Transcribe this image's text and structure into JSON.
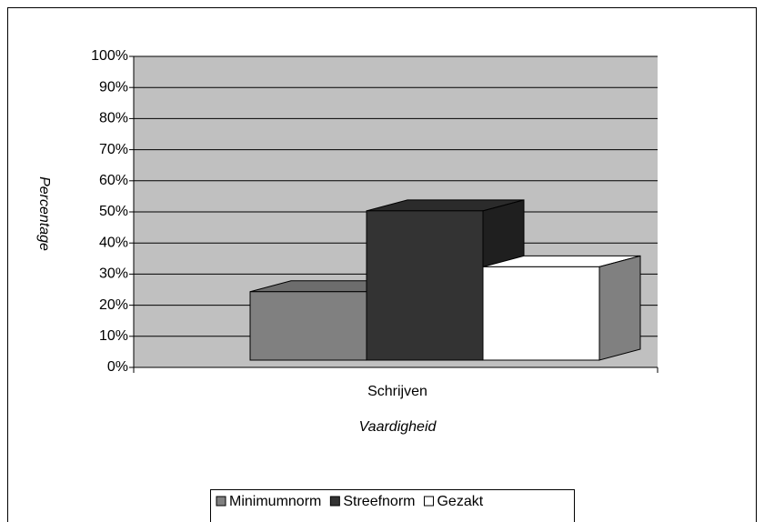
{
  "chart_data": {
    "type": "bar3d",
    "categories": [
      "Schrijven"
    ],
    "series": [
      {
        "name": "Minimumnorm",
        "color": "#808080",
        "values": [
          22
        ]
      },
      {
        "name": "Streefnorm",
        "color": "#333333",
        "values": [
          48
        ]
      },
      {
        "name": "Gezakt",
        "color": "#ffffff",
        "values": [
          30
        ]
      }
    ],
    "x_label": "Vaardigheid",
    "y_label": "Percentage",
    "ylim": [
      0,
      100
    ],
    "yticks": [
      {
        "value": 0,
        "label": "0%"
      },
      {
        "value": 10,
        "label": "10%"
      },
      {
        "value": 20,
        "label": "20%"
      },
      {
        "value": 30,
        "label": "30%"
      },
      {
        "value": 40,
        "label": "40%"
      },
      {
        "value": 50,
        "label": "50%"
      },
      {
        "value": 60,
        "label": "60%"
      },
      {
        "value": 70,
        "label": "70%"
      },
      {
        "value": 80,
        "label": "80%"
      },
      {
        "value": 90,
        "label": "90%"
      },
      {
        "value": 100,
        "label": "100%"
      }
    ],
    "grid": true,
    "legend": "bottom"
  }
}
